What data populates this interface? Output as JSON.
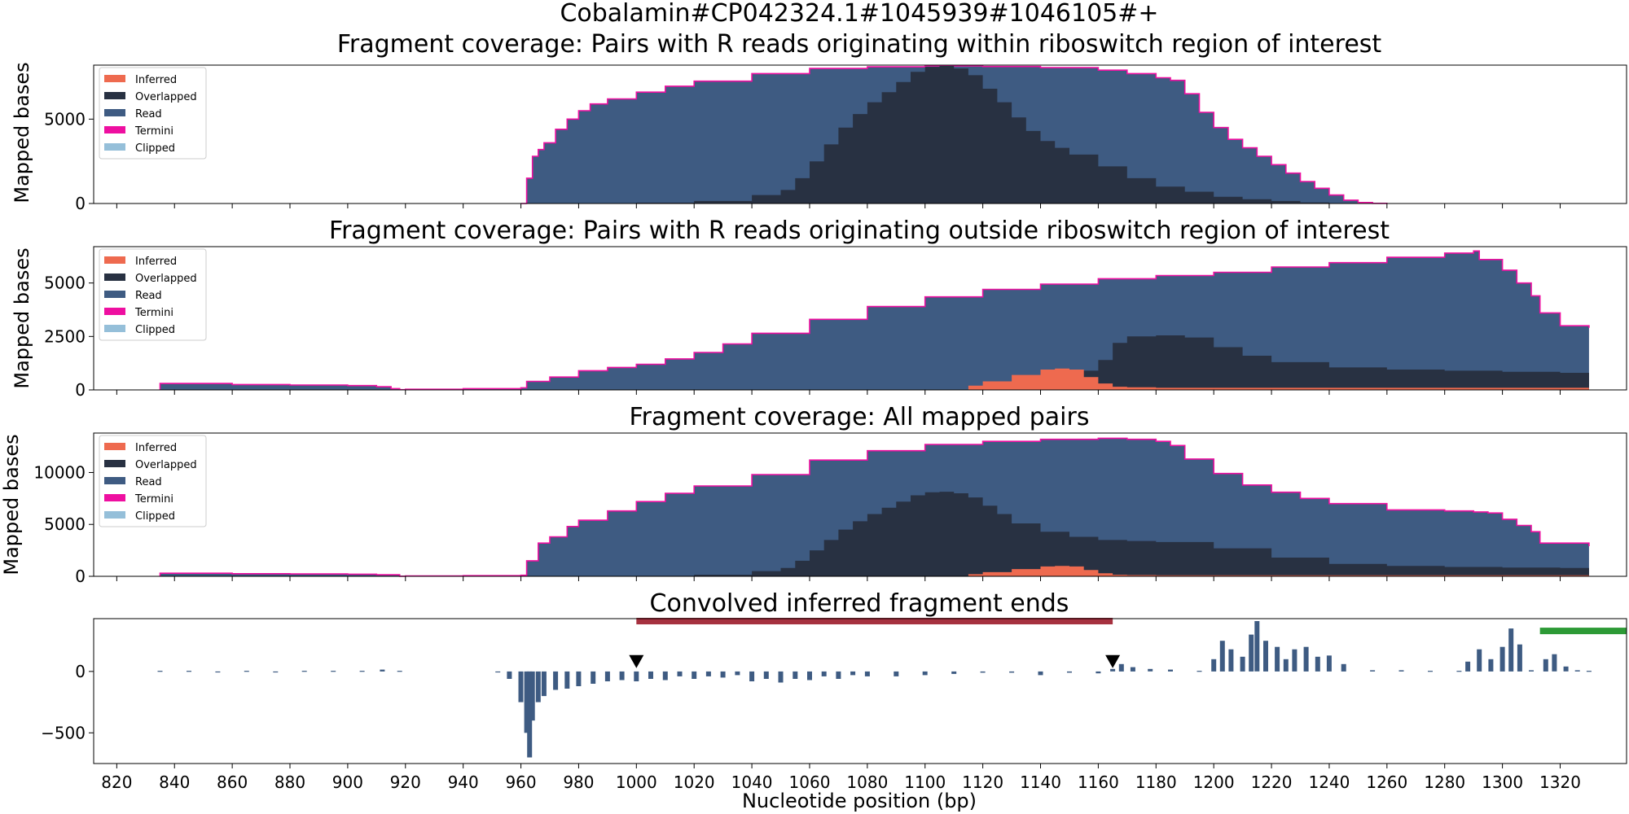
{
  "figure": {
    "suptitle": "Cobalamin#CP042324.1#1045939#1046105#+"
  },
  "colors": {
    "Inferred": "#ee6a4f",
    "Overlapped": "#283142",
    "Read": "#3e5b82",
    "Termini": "#ee0fa0",
    "Clipped": "#95bfd9",
    "region_bar": "#a6313f",
    "green_bar": "#2d9a36"
  },
  "chart_data": [
    {
      "type": "area",
      "title": "Fragment coverage: Pairs with R reads originating within riboswitch region of interest",
      "ylabel": "Mapped bases",
      "xlim": [
        812,
        1343
      ],
      "ylim": [
        0,
        8200
      ],
      "yticks": [
        0,
        5000
      ],
      "legend": {
        "placement": "upper-left",
        "entries": [
          "Inferred",
          "Overlapped",
          "Read",
          "Termini",
          "Clipped"
        ]
      },
      "series": [
        {
          "name": "Read",
          "x": [
            960,
            962,
            964,
            966,
            968,
            972,
            976,
            980,
            984,
            990,
            1000,
            1010,
            1020,
            1040,
            1060,
            1080,
            1100,
            1120,
            1140,
            1160,
            1170,
            1180,
            1185,
            1190,
            1195,
            1200,
            1205,
            1210,
            1215,
            1220,
            1225,
            1230,
            1235,
            1240,
            1245,
            1250,
            1255,
            1260
          ],
          "y": [
            0,
            1500,
            2800,
            3200,
            3600,
            4400,
            5000,
            5500,
            5900,
            6200,
            6600,
            6950,
            7250,
            7700,
            8000,
            8100,
            8150,
            8120,
            8050,
            7900,
            7700,
            7450,
            7300,
            6500,
            5400,
            4500,
            3800,
            3300,
            2800,
            2300,
            1800,
            1300,
            900,
            500,
            200,
            60,
            10,
            0
          ]
        },
        {
          "name": "Overlapped",
          "x": [
            960,
            980,
            1000,
            1020,
            1040,
            1050,
            1055,
            1060,
            1065,
            1070,
            1075,
            1080,
            1085,
            1090,
            1095,
            1100,
            1105,
            1110,
            1115,
            1120,
            1125,
            1130,
            1135,
            1140,
            1145,
            1150,
            1160,
            1170,
            1180,
            1190,
            1200,
            1210,
            1220,
            1230,
            1240,
            1250
          ],
          "y": [
            0,
            20,
            50,
            150,
            500,
            800,
            1500,
            2500,
            3500,
            4500,
            5300,
            6000,
            6600,
            7200,
            7800,
            8100,
            8150,
            8000,
            7600,
            6800,
            6000,
            5100,
            4300,
            3700,
            3300,
            2900,
            2200,
            1500,
            1000,
            700,
            400,
            250,
            150,
            60,
            10,
            0
          ]
        }
      ]
    },
    {
      "type": "area",
      "title": "Fragment coverage: Pairs with R reads originating outside riboswitch region of interest",
      "ylabel": "Mapped bases",
      "xlim": [
        812,
        1343
      ],
      "ylim": [
        0,
        6700
      ],
      "yticks": [
        0,
        2500,
        5000
      ],
      "legend": {
        "placement": "upper-left",
        "entries": [
          "Inferred",
          "Overlapped",
          "Read",
          "Termini",
          "Clipped"
        ]
      },
      "series": [
        {
          "name": "Read",
          "x": [
            835,
            860,
            880,
            900,
            910,
            915,
            918,
            920,
            940,
            960,
            962,
            970,
            980,
            990,
            1000,
            1010,
            1020,
            1030,
            1040,
            1060,
            1080,
            1100,
            1120,
            1140,
            1160,
            1180,
            1200,
            1220,
            1240,
            1260,
            1280,
            1290,
            1292,
            1300,
            1305,
            1310,
            1313,
            1320,
            1330
          ],
          "y": [
            300,
            250,
            230,
            200,
            150,
            60,
            10,
            30,
            60,
            100,
            400,
            600,
            900,
            1050,
            1200,
            1450,
            1750,
            2150,
            2650,
            3300,
            3900,
            4350,
            4700,
            4950,
            5200,
            5350,
            5500,
            5750,
            5950,
            6200,
            6400,
            6500,
            6100,
            5600,
            5000,
            4400,
            3600,
            3000,
            2900
          ]
        },
        {
          "name": "Overlapped",
          "x": [
            1110,
            1130,
            1140,
            1150,
            1160,
            1165,
            1170,
            1180,
            1190,
            1200,
            1210,
            1220,
            1240,
            1260,
            1280,
            1300,
            1320,
            1330
          ],
          "y": [
            0,
            0,
            500,
            900,
            1400,
            2200,
            2500,
            2550,
            2450,
            2000,
            1600,
            1300,
            1050,
            950,
            900,
            850,
            800,
            780
          ]
        },
        {
          "name": "Inferred",
          "x": [
            1110,
            1115,
            1120,
            1130,
            1140,
            1145,
            1150,
            1155,
            1160,
            1165,
            1170,
            1180,
            1200,
            1260,
            1330
          ],
          "y": [
            0,
            200,
            400,
            700,
            950,
            1000,
            950,
            600,
            300,
            150,
            120,
            100,
            100,
            100,
            80
          ]
        }
      ]
    },
    {
      "type": "area",
      "title": "Fragment coverage: All mapped pairs",
      "ylabel": "Mapped bases",
      "xlim": [
        812,
        1343
      ],
      "ylim": [
        0,
        13800
      ],
      "yticks": [
        0,
        5000,
        10000
      ],
      "legend": {
        "placement": "upper-left",
        "entries": [
          "Inferred",
          "Overlapped",
          "Read",
          "Termini",
          "Clipped"
        ]
      },
      "series": [
        {
          "name": "Read",
          "x": [
            835,
            860,
            880,
            900,
            910,
            918,
            920,
            940,
            960,
            962,
            966,
            970,
            976,
            980,
            990,
            1000,
            1010,
            1020,
            1040,
            1060,
            1080,
            1100,
            1120,
            1140,
            1160,
            1170,
            1180,
            1185,
            1190,
            1200,
            1210,
            1220,
            1230,
            1240,
            1260,
            1280,
            1290,
            1295,
            1300,
            1305,
            1310,
            1313,
            1330
          ],
          "y": [
            300,
            250,
            230,
            200,
            150,
            10,
            30,
            60,
            100,
            1500,
            3200,
            3800,
            4800,
            5400,
            6300,
            7200,
            8000,
            8700,
            9800,
            11200,
            12100,
            12700,
            13000,
            13200,
            13300,
            13200,
            13000,
            12600,
            11300,
            9900,
            8800,
            8100,
            7500,
            7000,
            6400,
            6300,
            6200,
            6100,
            5500,
            4900,
            4300,
            3200,
            2900
          ]
        },
        {
          "name": "Overlapped",
          "x": [
            960,
            980,
            1000,
            1020,
            1040,
            1050,
            1055,
            1060,
            1065,
            1070,
            1075,
            1080,
            1085,
            1090,
            1095,
            1100,
            1105,
            1110,
            1115,
            1120,
            1125,
            1130,
            1140,
            1150,
            1160,
            1170,
            1180,
            1200,
            1220,
            1240,
            1260,
            1280,
            1300,
            1320,
            1330
          ],
          "y": [
            0,
            20,
            50,
            150,
            500,
            800,
            1500,
            2500,
            3500,
            4500,
            5300,
            6000,
            6600,
            7200,
            7800,
            8100,
            8150,
            8000,
            7600,
            6800,
            6000,
            5100,
            4300,
            3800,
            3500,
            3400,
            3300,
            2700,
            1800,
            1200,
            1000,
            900,
            850,
            800,
            780
          ]
        },
        {
          "name": "Inferred",
          "x": [
            1110,
            1115,
            1120,
            1130,
            1140,
            1145,
            1150,
            1155,
            1160,
            1165,
            1170,
            1180,
            1200,
            1260,
            1330
          ],
          "y": [
            0,
            200,
            400,
            700,
            950,
            1000,
            950,
            600,
            300,
            150,
            120,
            100,
            100,
            100,
            80
          ]
        }
      ]
    },
    {
      "type": "bar",
      "title": "Convolved inferred fragment ends",
      "xlabel": "Nucleotide position (bp)",
      "xlim": [
        812,
        1343
      ],
      "ylim": [
        -750,
        430
      ],
      "yticks": [
        -500,
        0
      ],
      "xticks": [
        820,
        840,
        860,
        880,
        900,
        920,
        940,
        960,
        980,
        1000,
        1020,
        1040,
        1060,
        1080,
        1100,
        1120,
        1140,
        1160,
        1180,
        1200,
        1220,
        1240,
        1260,
        1280,
        1300,
        1320
      ],
      "series": [
        {
          "name": "Read",
          "x": [
            835,
            845,
            855,
            865,
            875,
            885,
            895,
            905,
            912,
            918,
            952,
            956,
            960,
            962,
            963,
            964,
            966,
            968,
            972,
            976,
            980,
            985,
            990,
            995,
            1000,
            1005,
            1010,
            1015,
            1020,
            1025,
            1030,
            1035,
            1040,
            1045,
            1050,
            1055,
            1060,
            1065,
            1070,
            1075,
            1080,
            1090,
            1100,
            1110,
            1120,
            1130,
            1140,
            1150,
            1160,
            1165,
            1168,
            1172,
            1178,
            1185,
            1195,
            1200,
            1203,
            1206,
            1210,
            1213,
            1215,
            1218,
            1222,
            1225,
            1228,
            1232,
            1236,
            1240,
            1245,
            1255,
            1265,
            1275,
            1285,
            1288,
            1292,
            1296,
            1300,
            1303,
            1306,
            1310,
            1315,
            1318,
            1322,
            1326,
            1330
          ],
          "y": [
            5,
            5,
            0,
            5,
            0,
            5,
            5,
            5,
            15,
            5,
            -5,
            -60,
            -250,
            -500,
            -700,
            -400,
            -250,
            -200,
            -150,
            -140,
            -120,
            -100,
            -80,
            -70,
            -80,
            -60,
            -70,
            -40,
            -60,
            -40,
            -50,
            -30,
            -80,
            -60,
            -90,
            -60,
            -70,
            -40,
            -60,
            -30,
            -40,
            -40,
            -30,
            -20,
            -10,
            -10,
            -30,
            -10,
            -15,
            20,
            60,
            35,
            20,
            15,
            5,
            100,
            250,
            180,
            120,
            300,
            410,
            250,
            200,
            100,
            180,
            200,
            120,
            130,
            60,
            10,
            10,
            5,
            5,
            80,
            180,
            100,
            200,
            350,
            220,
            10,
            100,
            140,
            40,
            10,
            5
          ]
        }
      ],
      "annotations": {
        "region_bar": {
          "start": 1000,
          "end": 1165,
          "y": 410
        },
        "green_bar": {
          "start": 1313,
          "end": 1343,
          "y": 330
        },
        "markers": [
          {
            "x": 1000,
            "y": 80
          },
          {
            "x": 1165,
            "y": 80
          }
        ]
      }
    }
  ]
}
